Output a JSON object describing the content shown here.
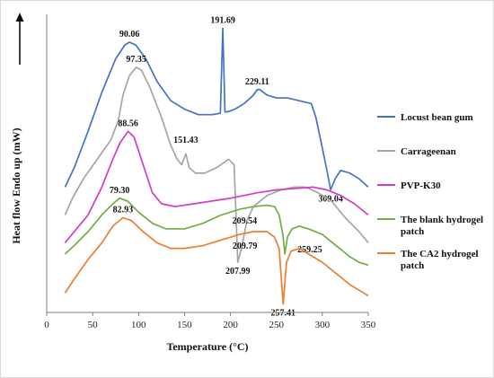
{
  "chart_data": {
    "type": "line",
    "xlabel": "Temperature (°C)",
    "ylabel": "Heat flow Endo up (mW)",
    "xlim": [
      0,
      350
    ],
    "xticks": [
      0,
      50,
      100,
      150,
      200,
      250,
      300,
      350
    ],
    "grid": false,
    "legend_position": "right",
    "y_scale": "relative, curves vertically offset (no y tick labels)",
    "series": [
      {
        "name": "Locust bean gum",
        "color": "#4472C4",
        "points": [
          [
            20,
            0.3
          ],
          [
            30,
            0.37
          ],
          [
            45,
            0.5
          ],
          [
            60,
            0.64
          ],
          [
            75,
            0.76
          ],
          [
            85,
            0.81
          ],
          [
            90,
            0.82
          ],
          [
            97,
            0.81
          ],
          [
            108,
            0.76
          ],
          [
            120,
            0.68
          ],
          [
            135,
            0.61
          ],
          [
            150,
            0.58
          ],
          [
            165,
            0.56
          ],
          [
            180,
            0.56
          ],
          [
            189,
            0.565
          ],
          [
            191.69,
            0.87
          ],
          [
            194,
            0.57
          ],
          [
            197,
            0.57
          ],
          [
            205,
            0.58
          ],
          [
            215,
            0.6
          ],
          [
            225,
            0.63
          ],
          [
            229.11,
            0.65
          ],
          [
            232,
            0.65
          ],
          [
            240,
            0.63
          ],
          [
            250,
            0.62
          ],
          [
            262,
            0.62
          ],
          [
            275,
            0.61
          ],
          [
            288,
            0.6
          ],
          [
            293,
            0.55
          ],
          [
            300,
            0.44
          ],
          [
            305,
            0.36
          ],
          [
            309.04,
            0.29
          ],
          [
            314,
            0.33
          ],
          [
            320,
            0.36
          ],
          [
            330,
            0.35
          ],
          [
            340,
            0.33
          ],
          [
            350,
            0.3
          ]
        ],
        "labels": [
          [
            "90.06",
            90.06,
            0.82
          ],
          [
            "191.69",
            191.69,
            0.87
          ],
          [
            "229.11",
            229.11,
            0.65
          ],
          [
            "309.04",
            309.04,
            0.29
          ]
        ]
      },
      {
        "name": "Carrageenan",
        "color": "#A5A5A5",
        "points": [
          [
            20,
            0.2
          ],
          [
            28,
            0.26
          ],
          [
            40,
            0.33
          ],
          [
            55,
            0.4
          ],
          [
            70,
            0.47
          ],
          [
            78,
            0.54
          ],
          [
            83,
            0.63
          ],
          [
            90,
            0.7
          ],
          [
            97.35,
            0.73
          ],
          [
            103,
            0.72
          ],
          [
            112,
            0.66
          ],
          [
            125,
            0.55
          ],
          [
            135,
            0.45
          ],
          [
            142,
            0.4
          ],
          [
            147,
            0.38
          ],
          [
            151.43,
            0.42
          ],
          [
            155,
            0.37
          ],
          [
            162,
            0.35
          ],
          [
            172,
            0.35
          ],
          [
            185,
            0.37
          ],
          [
            198,
            0.4
          ],
          [
            204,
            0.38
          ],
          [
            207.99,
            0.03
          ],
          [
            212,
            0.08
          ],
          [
            218,
            0.18
          ],
          [
            225,
            0.23
          ],
          [
            240,
            0.27
          ],
          [
            255,
            0.29
          ],
          [
            270,
            0.3
          ],
          [
            282,
            0.3
          ],
          [
            295,
            0.28
          ],
          [
            310,
            0.25
          ],
          [
            325,
            0.19
          ],
          [
            340,
            0.14
          ],
          [
            350,
            0.1
          ]
        ],
        "labels": [
          [
            "97.35",
            97.35,
            0.73
          ],
          [
            "151.43",
            151.43,
            0.42
          ],
          [
            "207.99",
            207.99,
            0.03
          ]
        ]
      },
      {
        "name": "PVP-K30",
        "color": "#D33BC3",
        "points": [
          [
            20,
            0.1
          ],
          [
            30,
            0.14
          ],
          [
            45,
            0.2
          ],
          [
            60,
            0.3
          ],
          [
            72,
            0.4
          ],
          [
            80,
            0.46
          ],
          [
            88.56,
            0.5
          ],
          [
            95,
            0.48
          ],
          [
            105,
            0.38
          ],
          [
            115,
            0.28
          ],
          [
            125,
            0.24
          ],
          [
            140,
            0.23
          ],
          [
            160,
            0.24
          ],
          [
            180,
            0.25
          ],
          [
            200,
            0.26
          ],
          [
            215,
            0.27
          ],
          [
            230,
            0.28
          ],
          [
            250,
            0.29
          ],
          [
            270,
            0.295
          ],
          [
            290,
            0.3
          ],
          [
            305,
            0.29
          ],
          [
            320,
            0.27
          ],
          [
            335,
            0.24
          ],
          [
            350,
            0.2
          ]
        ],
        "labels": [
          [
            "88.56",
            88.56,
            0.5
          ]
        ]
      },
      {
        "name": "The blank hydrogel patch",
        "color": "#70AD47",
        "points": [
          [
            20,
            0.06
          ],
          [
            30,
            0.09
          ],
          [
            45,
            0.14
          ],
          [
            60,
            0.2
          ],
          [
            72,
            0.24
          ],
          [
            79.3,
            0.26
          ],
          [
            88,
            0.25
          ],
          [
            100,
            0.21
          ],
          [
            115,
            0.17
          ],
          [
            130,
            0.15
          ],
          [
            150,
            0.15
          ],
          [
            170,
            0.17
          ],
          [
            190,
            0.2
          ],
          [
            209.54,
            0.22
          ],
          [
            225,
            0.23
          ],
          [
            240,
            0.235
          ],
          [
            248,
            0.23
          ],
          [
            253,
            0.2
          ],
          [
            257,
            0.13
          ],
          [
            259.25,
            0.06
          ],
          [
            262,
            0.12
          ],
          [
            267,
            0.15
          ],
          [
            275,
            0.16
          ],
          [
            285,
            0.15
          ],
          [
            300,
            0.13
          ],
          [
            315,
            0.09
          ],
          [
            330,
            0.05
          ],
          [
            340,
            0.03
          ],
          [
            350,
            0.02
          ]
        ],
        "labels": [
          [
            "79.30",
            79.3,
            0.26
          ],
          [
            "209.54",
            209.54,
            0.22
          ],
          [
            "259.25",
            259.25,
            0.06
          ]
        ]
      },
      {
        "name": "The CA2 hydrogel patch",
        "color": "#ED7D31",
        "points": [
          [
            20,
            -0.08
          ],
          [
            30,
            -0.03
          ],
          [
            45,
            0.04
          ],
          [
            60,
            0.1
          ],
          [
            72,
            0.16
          ],
          [
            82.93,
            0.19
          ],
          [
            92,
            0.18
          ],
          [
            105,
            0.14
          ],
          [
            120,
            0.1
          ],
          [
            135,
            0.08
          ],
          [
            150,
            0.08
          ],
          [
            170,
            0.09
          ],
          [
            190,
            0.11
          ],
          [
            209.79,
            0.13
          ],
          [
            225,
            0.14
          ],
          [
            240,
            0.14
          ],
          [
            248,
            0.12
          ],
          [
            253,
            0.08
          ],
          [
            257.41,
            -0.12
          ],
          [
            261,
            0.03
          ],
          [
            266,
            0.07
          ],
          [
            275,
            0.08
          ],
          [
            285,
            0.06
          ],
          [
            300,
            0.03
          ],
          [
            315,
            -0.01
          ],
          [
            330,
            -0.05
          ],
          [
            340,
            -0.07
          ],
          [
            350,
            -0.09
          ]
        ],
        "labels": [
          [
            "82.93",
            82.93,
            0.19
          ],
          [
            "209.79",
            209.79,
            0.13
          ],
          [
            "257.41",
            257.41,
            -0.12
          ]
        ]
      }
    ]
  }
}
